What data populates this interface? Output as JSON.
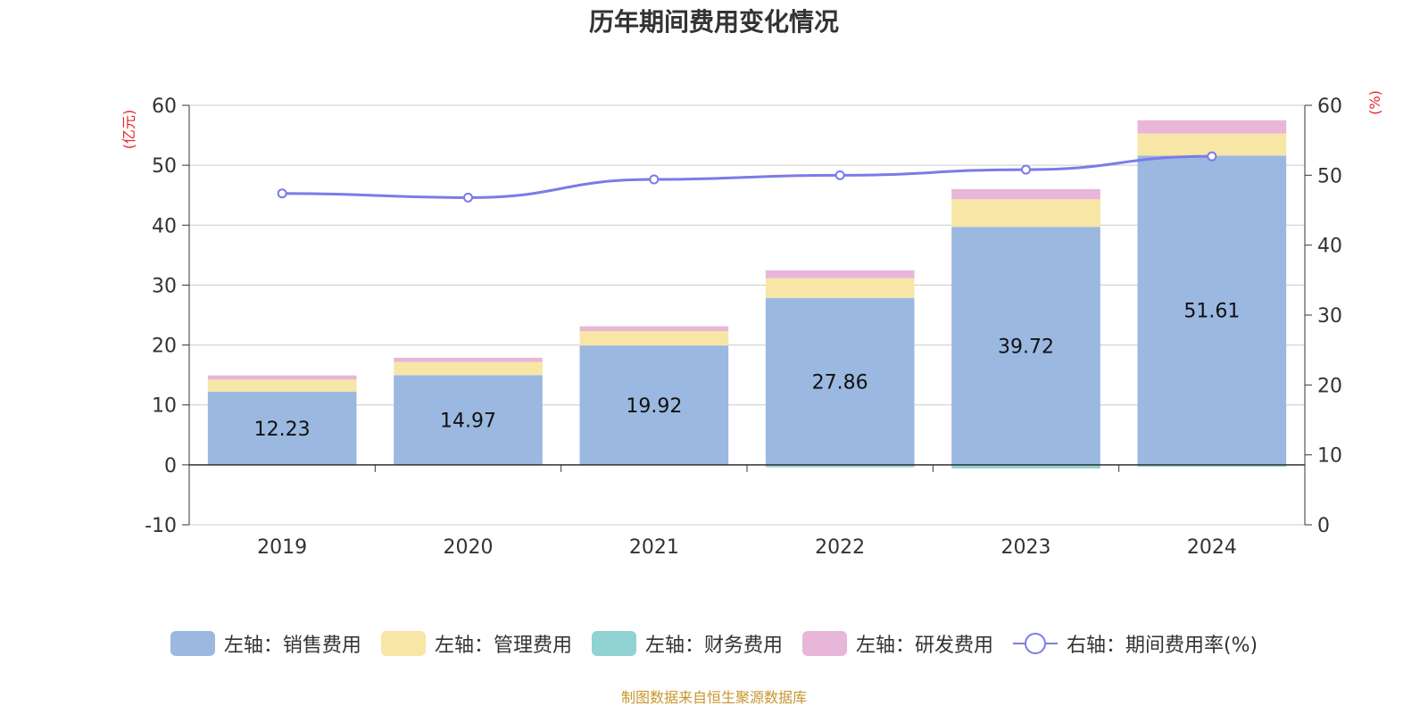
{
  "chart_data": {
    "type": "bar",
    "title": "历年期间费用变化情况",
    "categories": [
      "2019",
      "2020",
      "2021",
      "2022",
      "2023",
      "2024"
    ],
    "left_axis": {
      "unit_label": "(亿元)",
      "range": [
        -10,
        60
      ],
      "ticks": [
        "-10",
        "0",
        "10",
        "20",
        "30",
        "40",
        "50",
        "60"
      ]
    },
    "right_axis": {
      "unit_label": "(%)",
      "range": [
        0,
        60
      ],
      "ticks": [
        "0",
        "10",
        "20",
        "30",
        "40",
        "50",
        "60"
      ]
    },
    "grid": true,
    "stacked": true,
    "series": [
      {
        "name": "左轴：销售费用",
        "type": "bar",
        "axis": "left",
        "color": "#9bb8e1",
        "values": [
          12.23,
          14.97,
          19.92,
          27.86,
          39.72,
          51.61
        ],
        "data_labels": [
          "12.23",
          "14.97",
          "19.92",
          "27.86",
          "39.72",
          "51.61"
        ]
      },
      {
        "name": "左轴：管理费用",
        "type": "bar",
        "axis": "left",
        "color": "#f8e6a6",
        "values": [
          2.0,
          2.2,
          2.4,
          3.3,
          4.6,
          3.7
        ]
      },
      {
        "name": "左轴：财务费用",
        "type": "bar",
        "axis": "left",
        "color": "#91d2d2",
        "values": [
          -0.1,
          -0.1,
          -0.1,
          -0.4,
          -0.6,
          -0.3
        ]
      },
      {
        "name": "左轴：研发费用",
        "type": "bar",
        "axis": "left",
        "color": "#e8b6d9",
        "values": [
          0.7,
          0.7,
          0.8,
          1.3,
          1.7,
          2.2
        ]
      },
      {
        "name": "右轴：期间费用率(%)",
        "type": "line",
        "axis": "right",
        "color": "#7b7be8",
        "values": [
          47.4,
          46.8,
          49.4,
          50.0,
          50.8,
          52.7
        ]
      }
    ],
    "legend_position": "bottom"
  },
  "source_note": "制图数据来自恒生聚源数据库"
}
